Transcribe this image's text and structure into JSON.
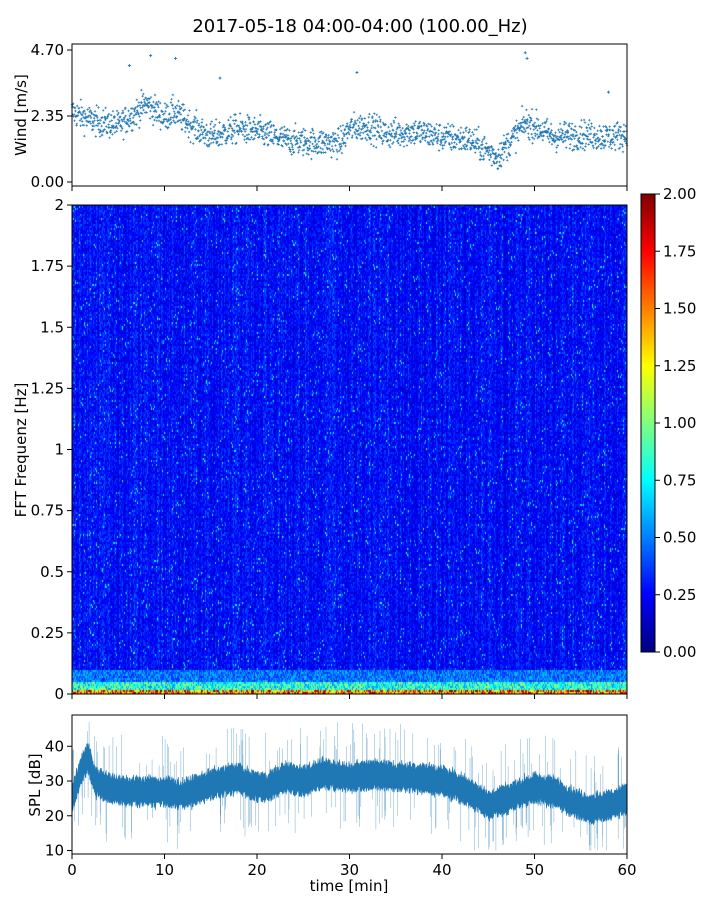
{
  "title": "2017-05-18 04:00-04:00 (100.00_Hz)",
  "chart_data": [
    {
      "id": "wind",
      "type": "scatter",
      "ylabel": "Wind [m/s]",
      "ylim": [
        0.0,
        4.7
      ],
      "yticks": [
        0.0,
        2.35,
        4.7
      ],
      "ytick_labels": [
        "0.00",
        "2.35",
        "4.70"
      ],
      "xlim": [
        0,
        60
      ],
      "xticks": [
        0,
        10,
        20,
        30,
        40,
        50,
        60
      ],
      "marker": "+",
      "color": "#1f77b4",
      "n_points": 1800,
      "profile": {
        "x": [
          0,
          2,
          5,
          7,
          8,
          10,
          11,
          13,
          15,
          18,
          20,
          23,
          26,
          29,
          30,
          32,
          34,
          37,
          40,
          43,
          45,
          46,
          48,
          49,
          50,
          52,
          55,
          58,
          60
        ],
        "y": [
          2.5,
          2.2,
          2.0,
          2.5,
          2.8,
          2.3,
          2.5,
          2.0,
          1.6,
          1.9,
          1.8,
          1.5,
          1.4,
          1.4,
          1.9,
          2.0,
          1.7,
          1.8,
          1.6,
          1.5,
          1.1,
          0.9,
          1.7,
          2.1,
          2.0,
          1.6,
          1.7,
          1.6,
          1.7
        ]
      },
      "spread": 0.5,
      "outliers": [
        {
          "x": 6.2,
          "y": 4.15
        },
        {
          "x": 8.5,
          "y": 4.5
        },
        {
          "x": 11.2,
          "y": 4.4
        },
        {
          "x": 16.0,
          "y": 3.7
        },
        {
          "x": 30.8,
          "y": 3.9
        },
        {
          "x": 49.0,
          "y": 4.6
        },
        {
          "x": 49.2,
          "y": 4.4
        },
        {
          "x": 58.0,
          "y": 3.2
        }
      ]
    },
    {
      "id": "spectrogram",
      "type": "heatmap",
      "ylabel": "FFT Frequenz [Hz]",
      "xlim": [
        0,
        60
      ],
      "ylim": [
        0,
        2
      ],
      "yticks": [
        0,
        0.25,
        0.5,
        0.75,
        1,
        1.25,
        1.5,
        1.75,
        2
      ],
      "ytick_labels": [
        "0",
        "0.25",
        "0.5",
        "0.75",
        "1",
        "1.25",
        "1.5",
        "1.75",
        "2"
      ],
      "colormap": "jet",
      "clim": [
        0.0,
        2.0
      ],
      "colorbar_ticks": [
        0.0,
        0.25,
        0.5,
        0.75,
        1.0,
        1.25,
        1.5,
        1.75,
        2.0
      ],
      "colorbar_tick_labels": [
        "0.00",
        "0.25",
        "0.50",
        "0.75",
        "1.00",
        "1.25",
        "1.50",
        "1.75",
        "2.00"
      ],
      "typical_value": 0.25,
      "low_band": [
        {
          "freq_max": 0.02,
          "value": 1.6
        },
        {
          "freq_max": 0.05,
          "value": 0.85
        },
        {
          "freq_max": 0.1,
          "value": 0.5
        }
      ]
    },
    {
      "id": "spl",
      "type": "area",
      "ylabel": "SPL [dB]",
      "xlabel": "time [min]",
      "xlim": [
        0,
        60
      ],
      "ylim": [
        9,
        49
      ],
      "yticks": [
        10,
        20,
        30,
        40
      ],
      "ytick_labels": [
        "10",
        "20",
        "30",
        "40"
      ],
      "xticks": [
        0,
        10,
        20,
        30,
        40,
        50,
        60
      ],
      "xtick_labels": [
        "0",
        "10",
        "20",
        "30",
        "40",
        "50",
        "60"
      ],
      "color": "#1f77b4",
      "profile": {
        "x": [
          0,
          1,
          1.7,
          2.5,
          4,
          6,
          10,
          12,
          15,
          18,
          19,
          21,
          23,
          25,
          27,
          30,
          33,
          35,
          37,
          40,
          42,
          44,
          45,
          47,
          50,
          52,
          54,
          56,
          58,
          60
        ],
        "y": [
          25,
          33,
          37,
          30,
          28,
          27,
          27,
          26,
          29,
          31,
          29,
          28,
          31,
          30,
          32,
          31,
          32,
          31,
          31,
          30,
          28,
          25,
          23,
          25,
          28,
          27,
          24,
          22,
          23,
          25
        ]
      },
      "band_half_width": 3.5
    }
  ]
}
